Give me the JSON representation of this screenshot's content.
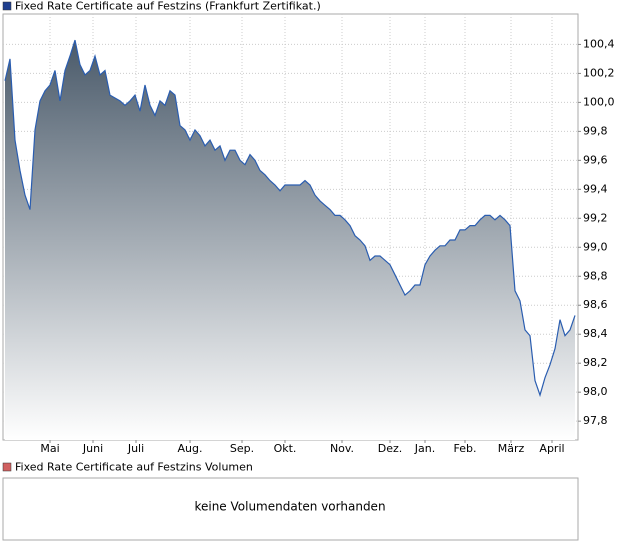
{
  "chart_data": [
    {
      "type": "area",
      "title": "Fixed Rate Certificate auf Festzins (Frankfurt Zertifikat.)",
      "color": "#2a5db0",
      "legend_color": "#1f3f8f",
      "fill_colors": [
        "#4a5a6a",
        "#ffffff"
      ],
      "grid": true,
      "values": [
        100.15,
        100.3,
        99.74,
        99.53,
        99.36,
        99.26,
        99.81,
        100.01,
        100.08,
        100.12,
        100.22,
        100.01,
        100.22,
        100.32,
        100.43,
        100.26,
        100.19,
        100.22,
        100.32,
        100.19,
        100.22,
        100.05,
        100.03,
        100.01,
        99.98,
        100.01,
        100.05,
        99.94,
        100.12,
        99.98,
        99.91,
        100.01,
        99.98,
        100.08,
        100.05,
        99.84,
        99.81,
        99.74,
        99.81,
        99.77,
        99.7,
        99.74,
        99.67,
        99.7,
        99.6,
        99.67,
        99.67,
        99.6,
        99.57,
        99.64,
        99.6,
        99.53,
        99.5,
        99.46,
        99.43,
        99.39,
        99.43,
        99.43,
        99.43,
        99.43,
        99.46,
        99.43,
        99.36,
        99.32,
        99.29,
        99.26,
        99.22,
        99.22,
        99.19,
        99.15,
        99.08,
        99.05,
        99.01,
        98.91,
        98.94,
        98.94,
        98.91,
        98.88,
        98.81,
        98.74,
        98.67,
        98.7,
        98.74,
        98.74,
        98.88,
        98.94,
        98.98,
        99.01,
        99.01,
        99.05,
        99.05,
        99.12,
        99.12,
        99.15,
        99.15,
        99.19,
        99.22,
        99.22,
        99.19,
        99.22,
        99.19,
        99.15,
        98.7,
        98.63,
        98.43,
        98.39,
        98.08,
        97.98,
        98.1,
        98.19,
        98.3,
        98.5,
        98.39,
        98.43,
        98.53
      ],
      "ylim": [
        97.67,
        100.61
      ],
      "yticks": [
        {
          "value": 97.8,
          "label": "97,8"
        },
        {
          "value": 98.0,
          "label": "98,0"
        },
        {
          "value": 98.2,
          "label": "98,2"
        },
        {
          "value": 98.4,
          "label": "98,4"
        },
        {
          "value": 98.6,
          "label": "98,6"
        },
        {
          "value": 98.8,
          "label": "98,8"
        },
        {
          "value": 99.0,
          "label": "99,0"
        },
        {
          "value": 99.2,
          "label": "99,2"
        },
        {
          "value": 99.4,
          "label": "99,4"
        },
        {
          "value": 99.6,
          "label": "99,6"
        },
        {
          "value": 99.8,
          "label": "99,8"
        },
        {
          "value": 100.0,
          "label": "100,0"
        },
        {
          "value": 100.2,
          "label": "100,2"
        },
        {
          "value": 100.4,
          "label": "100,4"
        }
      ],
      "xticks": [
        {
          "value": 9,
          "label": "Mai"
        },
        {
          "value": 17.6,
          "label": "Juni"
        },
        {
          "value": 26.2,
          "label": "Juli"
        },
        {
          "value": 37,
          "label": "Aug."
        },
        {
          "value": 47.4,
          "label": "Sep."
        },
        {
          "value": 56,
          "label": "Okt."
        },
        {
          "value": 67.4,
          "label": "Nov."
        },
        {
          "value": 77,
          "label": "Dez."
        },
        {
          "value": 84,
          "label": "Jan."
        },
        {
          "value": 92,
          "label": "Feb."
        },
        {
          "value": 101.2,
          "label": "März"
        },
        {
          "value": 109.4,
          "label": "April"
        }
      ]
    },
    {
      "type": "bar",
      "title": "Fixed Rate Certificate auf Festzins Volumen",
      "legend_color": "#d06060",
      "annotation": "keine Volumendaten vorhanden"
    }
  ]
}
